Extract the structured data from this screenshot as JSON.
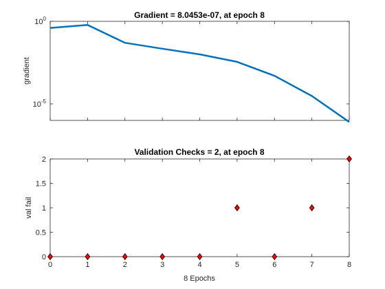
{
  "chart_data": [
    {
      "type": "line",
      "title": "Gradient = 8.0453e-07, at epoch 8",
      "xlabel": "",
      "ylabel": "gradient",
      "yscale": "log",
      "x": [
        0,
        1,
        2,
        3,
        4,
        5,
        6,
        7,
        8
      ],
      "values": [
        0.4,
        0.6,
        0.05,
        0.022,
        0.01,
        0.0035,
        0.0005,
        3e-05,
        8.0453e-07
      ],
      "xlim": [
        0,
        8
      ],
      "ylim": [
        1e-06,
        1
      ],
      "yticks": [
        {
          "base": "10",
          "exp": "0",
          "value": 1
        },
        {
          "base": "10",
          "exp": "-5",
          "value": 1e-05
        }
      ],
      "line_color": "#0072bd",
      "grid": false
    },
    {
      "type": "scatter",
      "title": "Validation Checks = 2, at epoch 8",
      "xlabel": "8 Epochs",
      "ylabel": "val fail",
      "x": [
        0,
        1,
        2,
        3,
        4,
        5,
        6,
        7,
        8
      ],
      "values": [
        0,
        0,
        0,
        0,
        0,
        1,
        0,
        1,
        2
      ],
      "xlim": [
        0,
        8
      ],
      "ylim": [
        0,
        2
      ],
      "xticks": [
        "0",
        "1",
        "2",
        "3",
        "4",
        "5",
        "6",
        "7",
        "8"
      ],
      "yticks": [
        "0",
        "0.5",
        "1",
        "1.5",
        "2"
      ],
      "marker": "diamond",
      "marker_color": "#ff0000",
      "grid": false
    }
  ]
}
